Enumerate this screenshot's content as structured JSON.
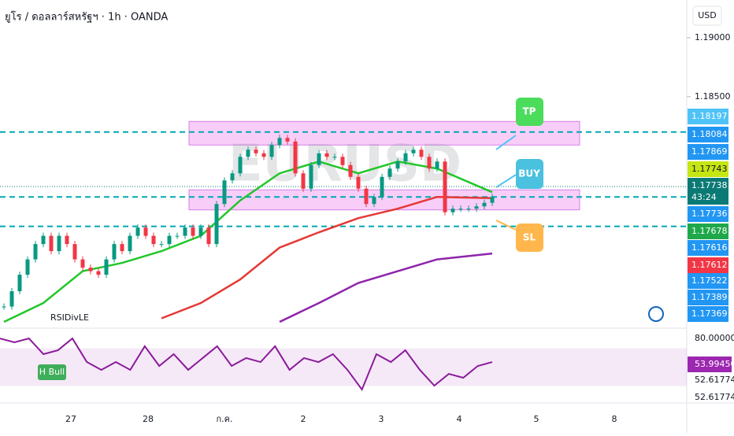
{
  "header": {
    "title": "ยูโร / ดอลลาร์สหรัฐฯ · 1h · OANDA",
    "currency": "USD"
  },
  "chart_data": {
    "type": "candlestick",
    "watermark": "EURUSD",
    "ylim": [
      1.1655,
      1.1932
    ],
    "yticks": [
      {
        "value": 1.19,
        "label": "1.19000"
      },
      {
        "value": 1.185,
        "label": "1.18500"
      }
    ],
    "up_color": "#089981",
    "down_color": "#f23645",
    "closes": [
      1.1672,
      1.1685,
      1.1699,
      1.1712,
      1.1725,
      1.1732,
      1.1719,
      1.1732,
      1.1725,
      1.1712,
      1.1705,
      1.1702,
      1.1699,
      1.1712,
      1.1725,
      1.1719,
      1.1732,
      1.1739,
      1.1732,
      1.1725,
      1.1725,
      1.1732,
      1.1732,
      1.1739,
      1.1732,
      1.1739,
      1.1725,
      1.1759,
      1.1779,
      1.1785,
      1.1799,
      1.1805,
      1.1802,
      1.1799,
      1.1809,
      1.1815,
      1.1812,
      1.1785,
      1.1772,
      1.1792,
      1.1802,
      1.1799,
      1.1799,
      1.1792,
      1.1782,
      1.1772,
      1.1759,
      1.1765,
      1.1782,
      1.1789,
      1.1795,
      1.1802,
      1.1805,
      1.1799,
      1.1789,
      1.1795,
      1.1752,
      1.1755,
      1.1755,
      1.1755,
      1.1757,
      1.176,
      1.1765
    ],
    "moving_averages": [
      {
        "color": "#22c72a",
        "values": [
          1.1659,
          1.1675,
          1.1702,
          1.1709,
          1.1719,
          1.1732,
          1.1762,
          1.1785,
          1.1795,
          1.1785,
          1.1795,
          1.1789,
          1.1769
        ]
      },
      {
        "color": "#e53935",
        "values": [
          null,
          null,
          null,
          null,
          1.1662,
          1.1675,
          1.1695,
          1.1722,
          1.1735,
          1.1747,
          1.1755,
          1.1765,
          1.1764
        ]
      },
      {
        "color": "#8e24aa",
        "values": [
          null,
          null,
          null,
          null,
          null,
          null,
          null,
          1.1659,
          1.1675,
          1.1692,
          1.1702,
          1.1712,
          1.1717
        ]
      }
    ],
    "levels": [
      1.182,
      1.1765,
      1.174
    ],
    "level_color": "#00a8b5",
    "zones": [
      [
        1.1809,
        1.1829
      ],
      [
        1.1754,
        1.1771
      ]
    ],
    "zone_color": "#f2a6f2",
    "current_price": 1.17738,
    "price_labels": [
      {
        "label": "1.18197",
        "color": "#4fc3f7"
      },
      {
        "label": "1.18084",
        "color": "#2196f3"
      },
      {
        "label": "1.17869",
        "color": "#2196f3"
      },
      {
        "label": "1.17743",
        "color": "#c6e614"
      },
      {
        "label": "1.17738",
        "color": "#0b7a75",
        "countdown": "43:24"
      },
      {
        "label": "1.17736",
        "color": "#2196f3"
      },
      {
        "label": "1.17678",
        "color": "#1fa84a"
      },
      {
        "label": "1.17616",
        "color": "#2196f3"
      },
      {
        "label": "1.17612",
        "color": "#f23645"
      },
      {
        "label": "1.17522",
        "color": "#2196f3"
      },
      {
        "label": "1.17389",
        "color": "#2196f3"
      },
      {
        "label": "1.17369",
        "color": "#2196f3"
      }
    ],
    "annotations": {
      "tp": "TP",
      "buy": "BUY",
      "sl": "SL",
      "divergence": "RSIDivLE",
      "rsi_signal": "H Bull"
    },
    "x_labels": [
      "27",
      "28",
      "ก.ค.",
      "2",
      "3",
      "4",
      "5",
      "8"
    ],
    "rsi": {
      "ylim": [
        30,
        90
      ],
      "band": [
        43,
        75
      ],
      "color": "#8b1a9b",
      "values": [
        83.3,
        80,
        83.3,
        70,
        73.3,
        83.3,
        63.3,
        56.7,
        63.3,
        56.7,
        76.7,
        60,
        70,
        56.7,
        66.7,
        76.7,
        60,
        66.7,
        63.3,
        76.7,
        56.7,
        66.7,
        63.3,
        70,
        56.7,
        40,
        70,
        63.3,
        73.3,
        56.7,
        43.3,
        53.3,
        50,
        60,
        63.3
      ],
      "labels": [
        {
          "label": "80.00000"
        },
        {
          "label": "53.99450",
          "color": "#9c27b0"
        },
        {
          "label": "52.61774"
        },
        {
          "label": "52.61774"
        }
      ]
    }
  }
}
